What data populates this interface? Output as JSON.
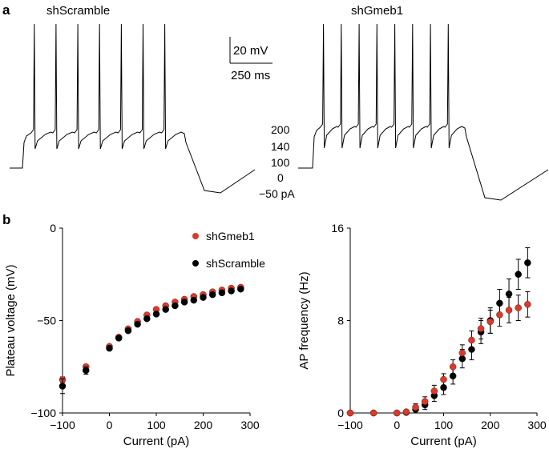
{
  "panel_a": {
    "letter": "a",
    "traces": [
      {
        "title": "shScramble",
        "spikes": 7
      },
      {
        "title": "shGmeb1",
        "spikes": 8
      }
    ],
    "scale_bar": {
      "voltage_label": "20 mV",
      "time_label": "250 ms"
    },
    "current_steps": [
      "200",
      "140",
      "100",
      "0",
      "−50 pA"
    ]
  },
  "panel_b": {
    "letter": "b"
  },
  "chart_data": [
    {
      "type": "scatter",
      "title": "",
      "xlabel": "Current (pA)",
      "ylabel": "Plateau voltage (mV)",
      "xlim": [
        -100,
        300
      ],
      "ylim": [
        -100,
        0
      ],
      "xticks": [
        -100,
        0,
        100,
        200,
        300
      ],
      "yticks": [
        -100,
        -50,
        0
      ],
      "legend": "top-right",
      "series": [
        {
          "name": "shGmeb1",
          "color": "#d93a2b",
          "x": [
            -100,
            -50,
            0,
            20,
            40,
            60,
            80,
            100,
            120,
            140,
            160,
            180,
            200,
            220,
            240,
            260,
            280
          ],
          "y": [
            -82,
            -75,
            -64,
            -59,
            -54.5,
            -50.5,
            -47,
            -44,
            -42,
            -40,
            -38.5,
            -37,
            -36,
            -34.5,
            -33.5,
            -32.5,
            -32
          ],
          "err": [
            1.5,
            1.2,
            1,
            1,
            1,
            1,
            1,
            1,
            1,
            1,
            1,
            1,
            1,
            1,
            1,
            1,
            1
          ]
        },
        {
          "name": "shScramble",
          "color": "#000000",
          "x": [
            -100,
            -50,
            0,
            20,
            40,
            60,
            80,
            100,
            120,
            140,
            160,
            180,
            200,
            220,
            240,
            260,
            280
          ],
          "y": [
            -85.5,
            -77,
            -65,
            -59.5,
            -55.5,
            -52,
            -49,
            -46.5,
            -44,
            -42,
            -40,
            -39,
            -37.5,
            -36,
            -35,
            -34,
            -33
          ],
          "err": [
            4,
            2,
            1.2,
            1,
            1,
            1,
            1,
            1,
            1,
            1,
            1,
            1,
            1,
            1,
            1,
            1,
            1
          ]
        }
      ]
    },
    {
      "type": "scatter",
      "title": "",
      "xlabel": "Current (pA)",
      "ylabel": "AP frequency (Hz)",
      "xlim": [
        -100,
        300
      ],
      "ylim": [
        0,
        16
      ],
      "xticks": [
        -100,
        0,
        100,
        200,
        300
      ],
      "yticks": [
        0,
        8,
        16
      ],
      "series": [
        {
          "name": "shScramble",
          "color": "#000000",
          "x": [
            -100,
            -50,
            0,
            20,
            40,
            60,
            80,
            100,
            120,
            140,
            160,
            180,
            200,
            220,
            240,
            260,
            280
          ],
          "y": [
            0,
            0,
            0,
            0.05,
            0.3,
            0.7,
            1.5,
            2.2,
            3.2,
            4.7,
            5.5,
            7,
            8,
            9.5,
            10.3,
            12,
            13
          ],
          "err": [
            0,
            0,
            0,
            0.1,
            0.3,
            0.4,
            0.5,
            0.6,
            0.7,
            0.8,
            0.9,
            1.0,
            1.1,
            1.2,
            1.3,
            1.3,
            1.3
          ]
        },
        {
          "name": "shGmeb1",
          "color": "#d93a2b",
          "x": [
            -100,
            -50,
            0,
            20,
            40,
            60,
            80,
            100,
            120,
            140,
            160,
            180,
            200,
            220,
            240,
            260,
            280
          ],
          "y": [
            0,
            0,
            0,
            0.1,
            0.5,
            1,
            1.9,
            2.9,
            4,
            5.2,
            6.3,
            7.3,
            7.9,
            8.5,
            8.9,
            9.1,
            9.4
          ],
          "err": [
            0,
            0,
            0,
            0.1,
            0.3,
            0.4,
            0.5,
            0.5,
            0.6,
            0.7,
            0.8,
            0.9,
            1.0,
            1.0,
            1.1,
            1.1,
            1.1
          ]
        }
      ]
    }
  ]
}
